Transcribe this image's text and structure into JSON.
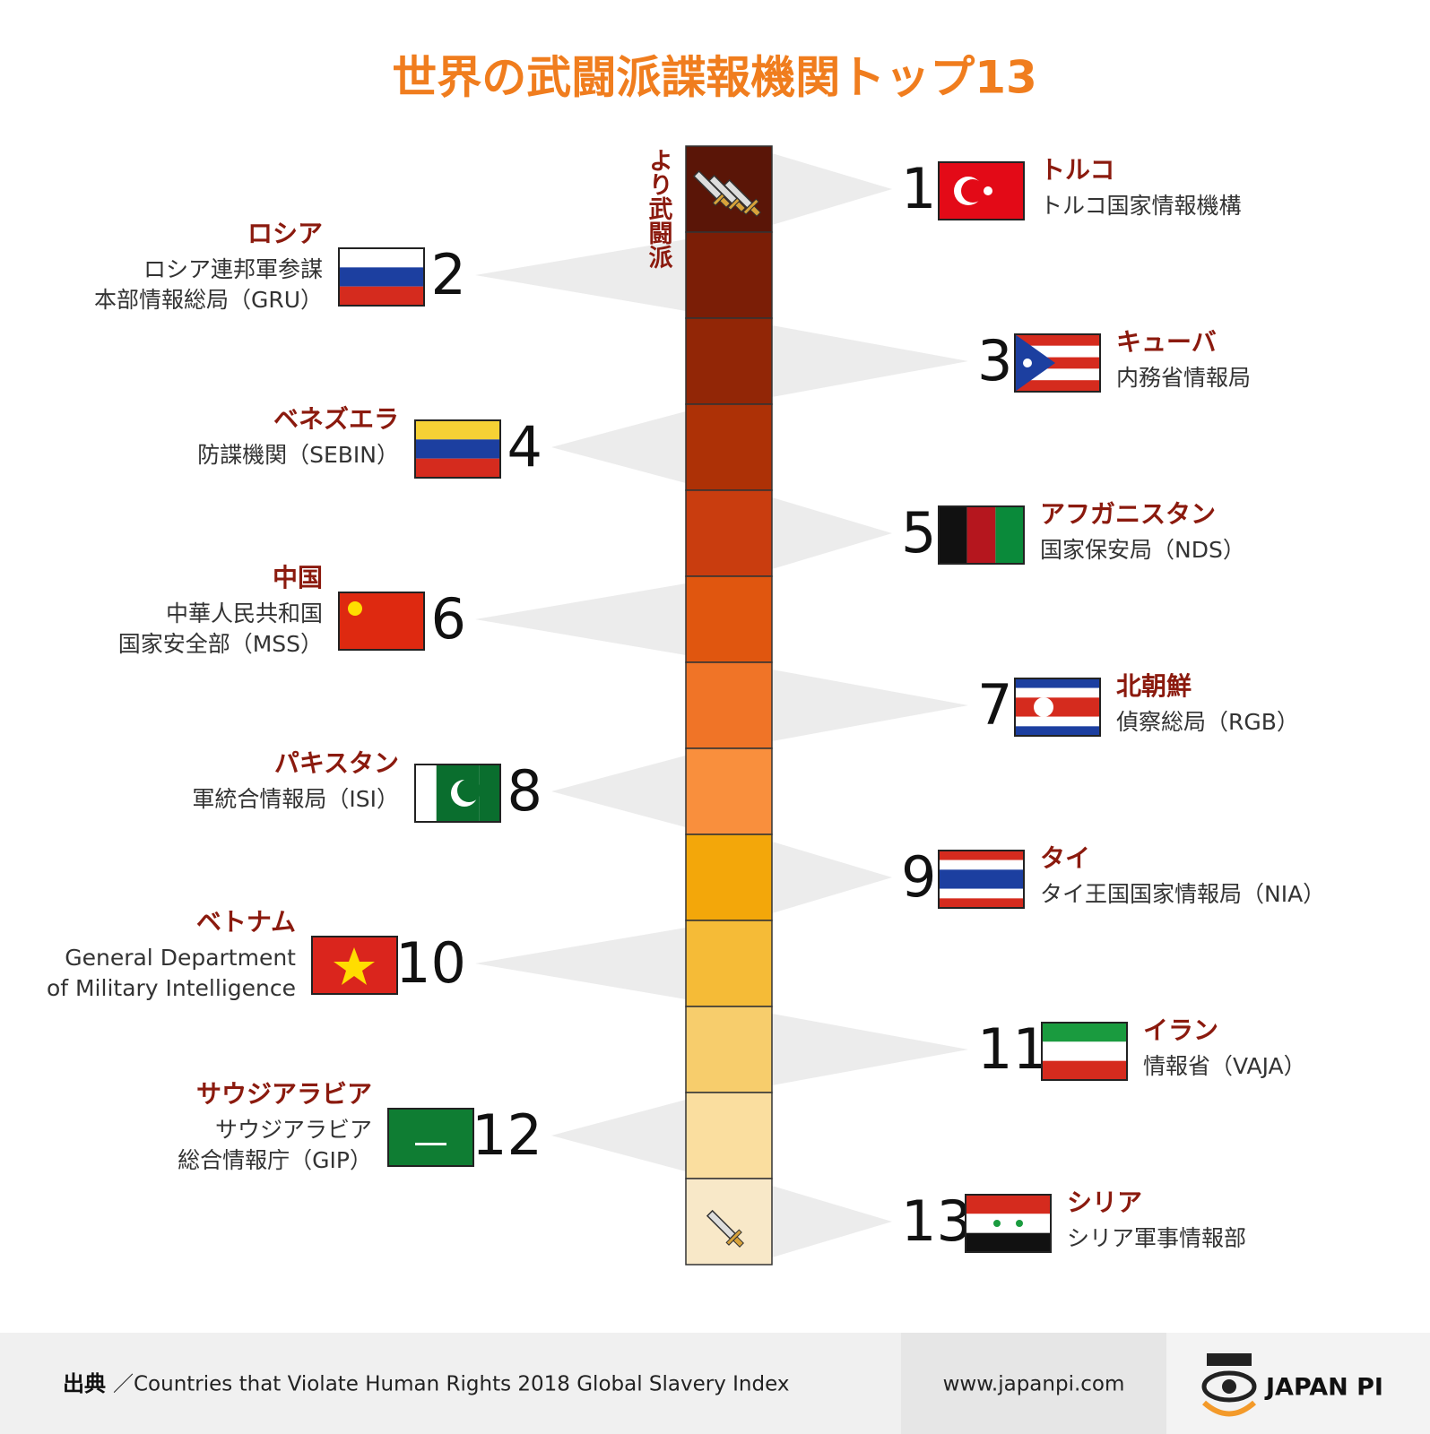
{
  "title": "世界の武闘派諜報機関トップ13",
  "scale_label": "より武闘派",
  "entries": [
    {
      "rank": "1",
      "country": "トルコ",
      "agency": [
        "トルコ国家情報機構"
      ]
    },
    {
      "rank": "2",
      "country": "ロシア",
      "agency": [
        "ロシア連邦軍参謀",
        "本部情報総局（GRU）"
      ]
    },
    {
      "rank": "3",
      "country": "キューバ",
      "agency": [
        "内務省情報局"
      ]
    },
    {
      "rank": "4",
      "country": "ベネズエラ",
      "agency": [
        "防諜機関（SEBIN）"
      ]
    },
    {
      "rank": "5",
      "country": "アフガニスタン",
      "agency": [
        "国家保安局（NDS）"
      ]
    },
    {
      "rank": "6",
      "country": "中国",
      "agency": [
        "中華人民共和国",
        "国家安全部（MSS）"
      ]
    },
    {
      "rank": "7",
      "country": "北朝鮮",
      "agency": [
        "偵察総局（RGB）"
      ]
    },
    {
      "rank": "8",
      "country": "パキスタン",
      "agency": [
        "軍統合情報局（ISI）"
      ]
    },
    {
      "rank": "9",
      "country": "タイ",
      "agency": [
        "タイ王国国家情報局（NIA）"
      ]
    },
    {
      "rank": "10",
      "country": "ベトナム",
      "agency": [
        "General Department",
        "of Military Intelligence"
      ]
    },
    {
      "rank": "11",
      "country": "イラン",
      "agency": [
        "情報省（VAJA）"
      ]
    },
    {
      "rank": "12",
      "country": "サウジアラビア",
      "agency": [
        "サウジアラビア",
        "総合情報庁（GIP）"
      ]
    },
    {
      "rank": "13",
      "country": "シリア",
      "agency": [
        "シリア軍事情報部"
      ]
    }
  ],
  "footer": {
    "source_label": "出典",
    "source": "／Countries that Violate Human Rights 2018 Global Slavery Index",
    "url": "www.japanpi.com",
    "brand": "JAPAN PI"
  }
}
